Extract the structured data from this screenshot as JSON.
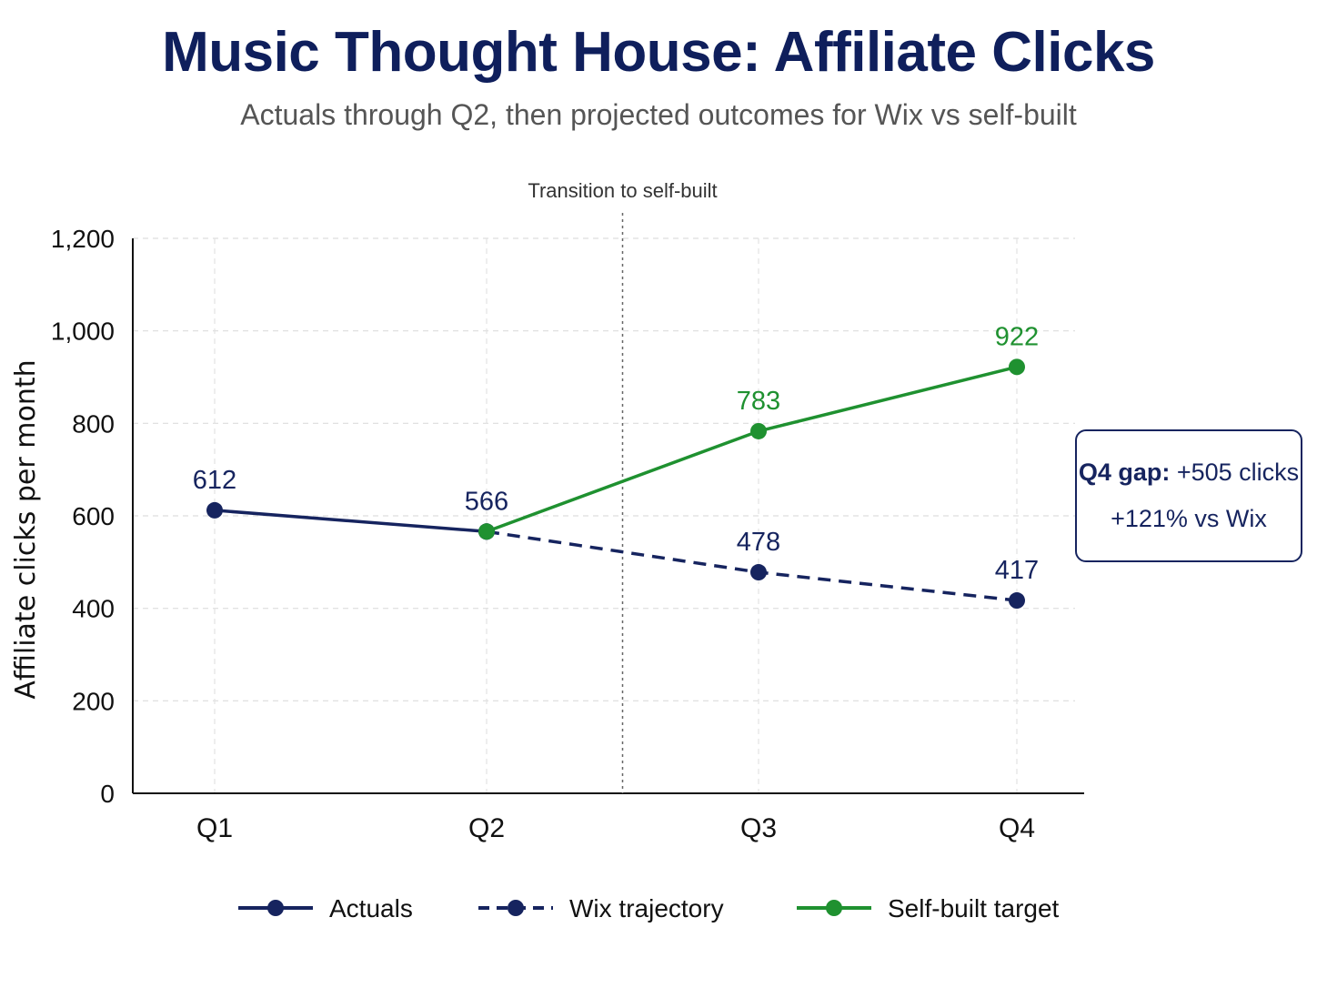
{
  "header": {
    "title": "Music Thought House: Affiliate Clicks",
    "subtitle": "Actuals through Q2, then projected outcomes for Wix vs self-built"
  },
  "callout": {
    "line1_bold": "Q4 gap:",
    "line1_rest": "+505 clicks",
    "line2": "+121% vs Wix"
  },
  "chart_data": {
    "type": "line",
    "title": "Music Thought House: Affiliate Clicks",
    "subtitle": "Actuals through Q2, then projected outcomes for Wix vs self-built",
    "xlabel": "",
    "ylabel": "Affiliate clicks per month",
    "categories": [
      "Q1",
      "Q2",
      "Q3",
      "Q4"
    ],
    "ylim": [
      0,
      1200
    ],
    "yticks": [
      0,
      200,
      400,
      600,
      800,
      1000,
      1200
    ],
    "ytick_labels": [
      "0",
      "200",
      "400",
      "600",
      "800",
      "1,000",
      "1,200"
    ],
    "grid": true,
    "legend_position": "bottom",
    "annotation": {
      "text": "Transition to self-built",
      "x_between": [
        "Q2",
        "Q3"
      ]
    },
    "series": [
      {
        "name": "Actuals",
        "style": "solid",
        "color": "#16245f",
        "points": [
          [
            "Q1",
            612
          ],
          [
            "Q2",
            566
          ]
        ],
        "labels": [
          "612",
          "566"
        ]
      },
      {
        "name": "Wix trajectory",
        "style": "dashed",
        "color": "#16245f",
        "points": [
          [
            "Q2",
            566
          ],
          [
            "Q3",
            478
          ],
          [
            "Q4",
            417
          ]
        ],
        "labels": [
          null,
          "478",
          "417"
        ]
      },
      {
        "name": "Self-built target",
        "style": "solid",
        "color": "#1f9130",
        "points": [
          [
            "Q2",
            566
          ],
          [
            "Q3",
            783
          ],
          [
            "Q4",
            922
          ]
        ],
        "labels": [
          null,
          "783",
          "922"
        ]
      }
    ]
  }
}
